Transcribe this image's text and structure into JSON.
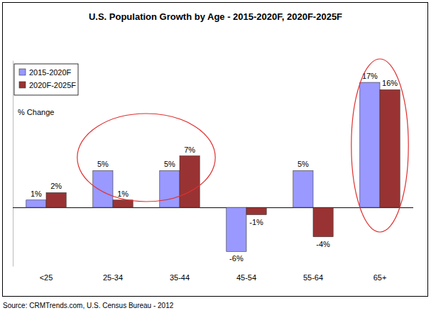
{
  "chart_data": {
    "type": "bar",
    "title": "U.S. Population Growth by Age - 2015-2020F, 2020F-2025F",
    "ylabel": "% Change",
    "source": "Source: CRMTrends.com, U.S. Census Bureau - 2012",
    "categories": [
      "<25",
      "25-34",
      "35-44",
      "45-54",
      "55-64",
      "65+"
    ],
    "series": [
      {
        "name": "2015-2020F",
        "color": "#9999ff",
        "values": [
          1,
          5,
          5,
          -6,
          5,
          17
        ],
        "value_labels": [
          "1%",
          "5%",
          "5%",
          "-6%",
          "5%",
          "17%"
        ]
      },
      {
        "name": "2020F-2025F",
        "color": "#993333",
        "values": [
          2,
          1,
          7,
          -1,
          -4,
          16
        ],
        "value_labels": [
          "2%",
          "1%",
          "7%",
          "-1%",
          "-4%",
          "16%"
        ]
      }
    ],
    "ylim": [
      -8,
      20
    ],
    "yticks": [
      0
    ],
    "tick_labels": "x",
    "data_labels": true,
    "legend": "upper left",
    "grid": false
  }
}
